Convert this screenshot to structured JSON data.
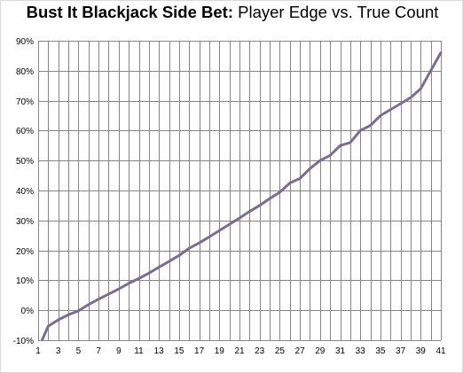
{
  "chart_data": {
    "type": "line",
    "title_bold": "Bust It Blackjack Side Bet:",
    "title_rest": "Player Edge vs. True Count",
    "xlabel": "",
    "ylabel": "",
    "x": [
      1,
      2,
      3,
      4,
      5,
      6,
      7,
      8,
      9,
      10,
      11,
      12,
      13,
      14,
      15,
      16,
      17,
      18,
      19,
      20,
      21,
      22,
      23,
      24,
      25,
      26,
      27,
      28,
      29,
      30,
      31,
      32,
      33,
      34,
      35,
      36,
      37,
      38,
      39,
      40,
      41
    ],
    "series": [
      {
        "values": [
          -0.13,
          -0.053,
          -0.032,
          -0.015,
          -0.002,
          0.019,
          0.037,
          0.054,
          0.071,
          0.09,
          0.106,
          0.124,
          0.144,
          0.163,
          0.183,
          0.207,
          0.225,
          0.245,
          0.266,
          0.287,
          0.308,
          0.33,
          0.35,
          0.373,
          0.394,
          0.425,
          0.44,
          0.473,
          0.5,
          0.517,
          0.55,
          0.56,
          0.6,
          0.617,
          0.65,
          0.67,
          0.69,
          0.71,
          0.74,
          0.8,
          0.86
        ],
        "color": "#7b6b95"
      }
    ],
    "ylim": [
      -0.1,
      0.9
    ],
    "xlim": [
      1,
      41
    ],
    "y_ticks": [
      -0.1,
      0,
      0.1,
      0.2,
      0.3,
      0.4,
      0.5,
      0.6,
      0.7,
      0.8,
      0.9
    ],
    "y_tick_labels": [
      "-10%",
      "0%",
      "10%",
      "20%",
      "30%",
      "40%",
      "50%",
      "60%",
      "70%",
      "80%",
      "90%"
    ],
    "x_tick_labels": [
      "1",
      "3",
      "5",
      "7",
      "9",
      "11",
      "13",
      "15",
      "17",
      "19",
      "21",
      "23",
      "25",
      "27",
      "29",
      "31",
      "33",
      "35",
      "37",
      "39",
      "41"
    ],
    "grid": true,
    "grid_color": "#868686",
    "legend": "none"
  }
}
